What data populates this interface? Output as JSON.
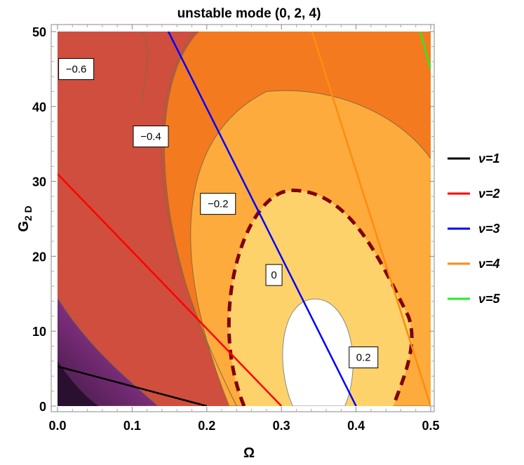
{
  "chart_data": {
    "type": "contour",
    "title": "unstable mode  (0, 2, 4)",
    "xlabel": "Ω",
    "ylabel": {
      "main": "G",
      "sub": "2 D"
    },
    "xlim": [
      0,
      0.5
    ],
    "ylim": [
      0,
      50
    ],
    "x_ticks": [
      "0.0",
      "0.1",
      "0.2",
      "0.3",
      "0.4",
      "0.5"
    ],
    "y_ticks": [
      "0",
      "10",
      "20",
      "30",
      "40",
      "50"
    ],
    "contour_levels": [
      {
        "value": -0.6,
        "label": "−0.6",
        "at": [
          0.025,
          45.0
        ],
        "fill": "#cf4e3e"
      },
      {
        "value": -0.4,
        "label": "−0.4",
        "at": [
          0.125,
          36.0
        ],
        "fill": "#f47a1f"
      },
      {
        "value": -0.2,
        "label": "−0.2",
        "at": [
          0.215,
          27.0
        ],
        "fill": "#fcab3c"
      },
      {
        "value": 0,
        "label": "0",
        "at": [
          0.29,
          17.5
        ],
        "fill": "#fed26a",
        "dashed": true
      },
      {
        "value": 0.2,
        "label": "0.2",
        "at": [
          0.41,
          6.5
        ],
        "fill": "#ffffff"
      }
    ],
    "contour_boundaries": {
      "-0.8": {
        "apex_x": 0.025,
        "top_y": 14.5,
        "right_x": 0.135
      },
      "-0.6": {
        "apex_x": 0.11,
        "top_y": 46.0,
        "right_x": 0.24
      },
      "-0.4": {
        "center_x": 0.33,
        "top_y": 54.0,
        "left_x": 0.115,
        "right_x": 0.515,
        "right_y": 28.0
      },
      "-0.2": {
        "center_x": 0.3,
        "top_y": 42.0,
        "left_x": 0.165,
        "right_x": 0.5,
        "right_y": 30.5
      },
      "0": {
        "center_x": 0.315,
        "top_y": 28.8,
        "left_x": 0.25,
        "right_x": 0.45
      },
      "0.2": {
        "center_x": 0.345,
        "top_y": 14.3,
        "left_x": 0.305,
        "right_x": 0.395
      }
    },
    "darkest_fill": [
      "#7b2d7a",
      "#a8417a"
    ],
    "series": [
      {
        "name": "ν=1",
        "color": "#000000",
        "x": [
          0,
          0.2
        ],
        "y": [
          5.3,
          0
        ]
      },
      {
        "name": "ν=2",
        "color": "#ff0000",
        "x": [
          0,
          0.3
        ],
        "y": [
          31,
          0
        ]
      },
      {
        "name": "ν=3",
        "color": "#0000ff",
        "x": [
          0.147,
          0.4
        ],
        "y": [
          50.3,
          0
        ]
      },
      {
        "name": "ν=4",
        "color": "#ff8c10",
        "x": [
          0.34,
          0.5
        ],
        "y": [
          50.3,
          0
        ]
      },
      {
        "name": "ν=5",
        "color": "#22ee22",
        "x": [
          0.485,
          0.51
        ],
        "y": [
          50.3,
          41.5
        ]
      }
    ],
    "legend_position": "right"
  }
}
